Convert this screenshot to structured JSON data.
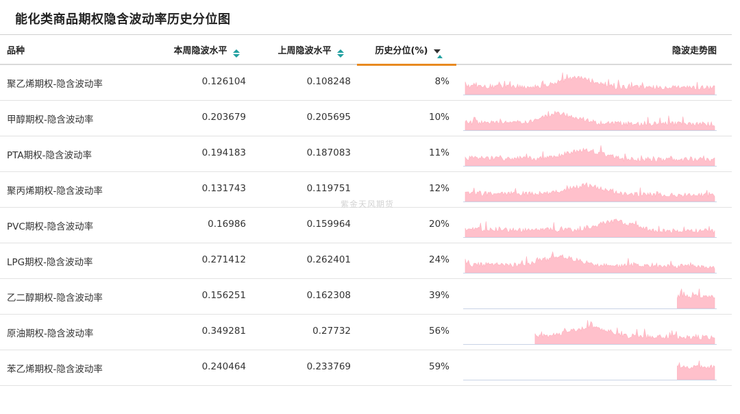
{
  "title": "能化类商品期权隐含波动率历史分位图",
  "watermark": "紫金天风期货",
  "columns": {
    "variety": "品种",
    "current": "本周隐波水平",
    "previous": "上周隐波水平",
    "percentile": "历史分位(%)",
    "trend": "隐波走势图"
  },
  "colors": {
    "spark_fill": "#ffc0cb",
    "spark_baseline": "#c9d3e6",
    "sort_accent": "#22a0a0",
    "active_underline": "#e88a20"
  },
  "rows": [
    {
      "name": "聚乙烯期权-隐含波动率",
      "current": "0.126104",
      "previous": "0.108248",
      "percentile": "8%",
      "spark_start": 0.0,
      "spark_peak": 0.45,
      "spark_level": 0.55
    },
    {
      "name": "甲醇期权-隐含波动率",
      "current": "0.203679",
      "previous": "0.205695",
      "percentile": "10%",
      "spark_start": 0.0,
      "spark_peak": 0.38,
      "spark_level": 0.45
    },
    {
      "name": "PTA期权-隐含波动率",
      "current": "0.194183",
      "previous": "0.187083",
      "percentile": "11%",
      "spark_start": 0.0,
      "spark_peak": 0.48,
      "spark_level": 0.45
    },
    {
      "name": "聚丙烯期权-隐含波动率",
      "current": "0.131743",
      "previous": "0.119751",
      "percentile": "12%",
      "spark_start": 0.0,
      "spark_peak": 0.48,
      "spark_level": 0.5
    },
    {
      "name": "PVC期权-隐含波动率",
      "current": "0.16986",
      "previous": "0.159964",
      "percentile": "20%",
      "spark_start": 0.0,
      "spark_peak": 0.6,
      "spark_level": 0.45
    },
    {
      "name": "LPG期权-隐含波动率",
      "current": "0.271412",
      "previous": "0.262401",
      "percentile": "24%",
      "spark_start": 0.0,
      "spark_peak": 0.38,
      "spark_level": 0.5
    },
    {
      "name": "乙二醇期权-隐含波动率",
      "current": "0.156251",
      "previous": "0.162308",
      "percentile": "39%",
      "spark_start": 0.85,
      "spark_peak": 0.9,
      "spark_level": 0.8
    },
    {
      "name": "原油期权-隐含波动率",
      "current": "0.349281",
      "previous": "0.27732",
      "percentile": "56%",
      "spark_start": 0.28,
      "spark_peak": 0.5,
      "spark_level": 0.55
    },
    {
      "name": "苯乙烯期权-隐含波动率",
      "current": "0.240464",
      "previous": "0.233769",
      "percentile": "59%",
      "spark_start": 0.85,
      "spark_peak": 0.93,
      "spark_level": 0.45
    }
  ]
}
